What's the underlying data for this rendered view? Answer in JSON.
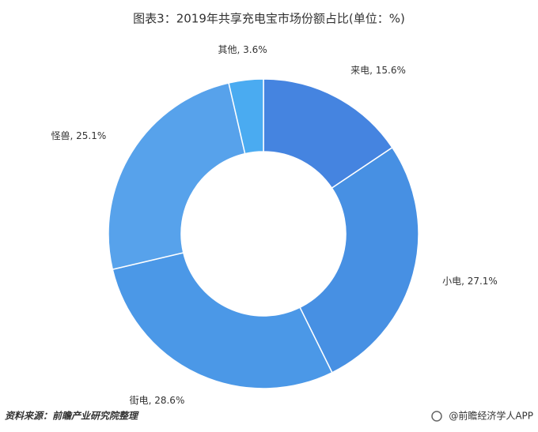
{
  "chart_data": {
    "type": "donut",
    "title": "图表3：2019年共享充电宝市场份额占比(单位：%)",
    "values": [
      15.6,
      27.1,
      28.6,
      25.1,
      3.6
    ],
    "value_labels": [
      "来电, 15.6%",
      "小电, 27.1%",
      "街电, 28.6%",
      "怪兽, 25.1%",
      "其他, 3.6%"
    ],
    "colors": [
      "#4584e0",
      "#4790e3",
      "#4b98e7",
      "#57a2eb",
      "#4aabf1"
    ]
  },
  "footer": {
    "source": "资料来源：前瞻产业研究院整理",
    "brand": "@前瞻经济学人APP"
  }
}
